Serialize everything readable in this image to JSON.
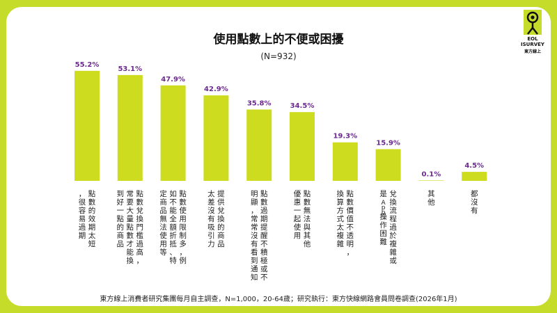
{
  "header": {
    "title": "使用點數上的不便或困擾",
    "subtitle": "(N=932)"
  },
  "logo": {
    "line1": "EOL",
    "line2": "ISURVEY",
    "line3": "東方線上"
  },
  "footer": {
    "source": "東方線上消費者研究集團每月自主調查，N=1,000，20-64歲；研究執行：東方快線網路會員問卷調查(2026年1月)"
  },
  "colors": {
    "bar": "#cddc1f",
    "value_label": "#6b2a8f",
    "background": "#c5dc2b"
  },
  "chart_data": {
    "type": "bar",
    "title": "使用點數上的不便或困擾",
    "subtitle": "(N=932)",
    "ylim": [
      0,
      60
    ],
    "grid": false,
    "legend": "none",
    "categories": [
      "點數的效期太短，很容易過期",
      "點數兌換門檻過高，常要大量點數才能換到好一點的商品",
      "點數使用限制多，例如不能全額折抵、特定商品無法使用等",
      "提供兌換的商品太差沒有吸引力",
      "點數過期提醒不積極或不明顯，常常沒有看到通知",
      "點數無法與其他優惠一起使用",
      "點數價值不透明，換算方式太複雜",
      "兌換流程過於複雜或是App操作困難",
      "其他",
      "都沒有"
    ],
    "values": [
      55.2,
      53.1,
      47.9,
      42.9,
      35.8,
      34.5,
      19.3,
      15.9,
      0.1,
      4.5
    ],
    "value_labels": [
      "55.2%",
      "53.1%",
      "47.9%",
      "42.9%",
      "35.8%",
      "34.5%",
      "19.3%",
      "15.9%",
      "0.1%",
      "4.5%"
    ]
  }
}
